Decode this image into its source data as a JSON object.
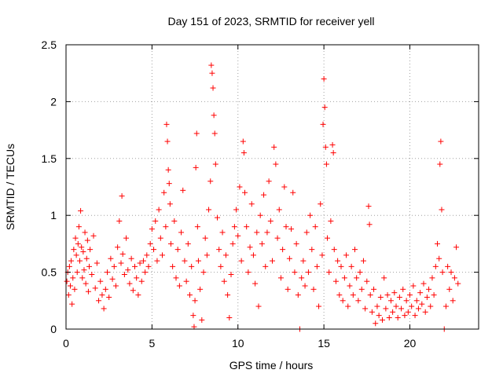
{
  "chart_data": {
    "type": "scatter",
    "title": "Day 151 of 2023, SRMTID for receiver yell",
    "xlabel": "GPS time / hours",
    "ylabel": "SRMTID / TECUs",
    "xlim": [
      0,
      24
    ],
    "ylim": [
      0,
      2.5
    ],
    "x_ticks": [
      0,
      5,
      10,
      15,
      20
    ],
    "x_tick_labels": [
      "0",
      "5",
      "10",
      "15",
      "20"
    ],
    "y_ticks": [
      0,
      0.5,
      1,
      1.5,
      2,
      2.5
    ],
    "y_tick_labels": [
      "0",
      "0.5",
      "1",
      "1.5",
      "2",
      "2.5"
    ],
    "grid": true,
    "marker": "plus",
    "color": "#ff0000",
    "series": [
      {
        "name": "SRMTID",
        "points": [
          [
            0.05,
            0.42
          ],
          [
            0.1,
            0.5
          ],
          [
            0.15,
            0.3
          ],
          [
            0.2,
            0.55
          ],
          [
            0.25,
            0.38
          ],
          [
            0.3,
            0.6
          ],
          [
            0.35,
            0.22
          ],
          [
            0.4,
            0.45
          ],
          [
            0.45,
            0.7
          ],
          [
            0.5,
            0.35
          ],
          [
            0.55,
            0.8
          ],
          [
            0.6,
            0.65
          ],
          [
            0.65,
            0.5
          ],
          [
            0.7,
            0.75
          ],
          [
            0.75,
            0.9
          ],
          [
            0.8,
            0.6
          ],
          [
            0.85,
            1.04
          ],
          [
            0.9,
            0.72
          ],
          [
            0.95,
            0.45
          ],
          [
            1.0,
            0.68
          ],
          [
            1.05,
            0.52
          ],
          [
            1.1,
            0.85
          ],
          [
            1.15,
            0.4
          ],
          [
            1.2,
            0.62
          ],
          [
            1.25,
            0.78
          ],
          [
            1.3,
            0.33
          ],
          [
            1.35,
            0.55
          ],
          [
            1.4,
            0.7
          ],
          [
            1.5,
            0.48
          ],
          [
            1.6,
            0.82
          ],
          [
            1.7,
            0.36
          ],
          [
            1.8,
            0.58
          ],
          [
            1.9,
            0.25
          ],
          [
            2.0,
            0.42
          ],
          [
            2.1,
            0.3
          ],
          [
            2.2,
            0.18
          ],
          [
            2.3,
            0.35
          ],
          [
            2.4,
            0.5
          ],
          [
            2.5,
            0.28
          ],
          [
            2.6,
            0.62
          ],
          [
            2.7,
            0.44
          ],
          [
            2.8,
            0.55
          ],
          [
            2.9,
            0.38
          ],
          [
            3.0,
            0.72
          ],
          [
            3.1,
            0.95
          ],
          [
            3.2,
            0.58
          ],
          [
            3.25,
            1.17
          ],
          [
            3.3,
            0.66
          ],
          [
            3.4,
            0.48
          ],
          [
            3.5,
            0.8
          ],
          [
            3.6,
            0.52
          ],
          [
            3.7,
            0.4
          ],
          [
            3.8,
            0.62
          ],
          [
            3.9,
            0.34
          ],
          [
            4.0,
            0.55
          ],
          [
            4.1,
            0.45
          ],
          [
            4.2,
            0.3
          ],
          [
            4.3,
            0.58
          ],
          [
            4.4,
            0.42
          ],
          [
            4.5,
            0.6
          ],
          [
            4.6,
            0.5
          ],
          [
            4.7,
            0.65
          ],
          [
            4.8,
            0.55
          ],
          [
            4.9,
            0.75
          ],
          [
            5.0,
            0.88
          ],
          [
            5.1,
            0.7
          ],
          [
            5.2,
            0.95
          ],
          [
            5.3,
            0.6
          ],
          [
            5.4,
            1.05
          ],
          [
            5.5,
            0.8
          ],
          [
            5.6,
            0.65
          ],
          [
            5.7,
            1.2
          ],
          [
            5.8,
            0.9
          ],
          [
            5.85,
            1.8
          ],
          [
            5.9,
            1.65
          ],
          [
            5.95,
            1.4
          ],
          [
            6.0,
            1.28
          ],
          [
            6.05,
            1.1
          ],
          [
            6.1,
            0.75
          ],
          [
            6.2,
            0.55
          ],
          [
            6.3,
            0.95
          ],
          [
            6.4,
            0.45
          ],
          [
            6.5,
            0.7
          ],
          [
            6.6,
            0.38
          ],
          [
            6.7,
            0.85
          ],
          [
            6.8,
            1.22
          ],
          [
            6.9,
            0.6
          ],
          [
            7.0,
            0.42
          ],
          [
            7.1,
            0.75
          ],
          [
            7.2,
            0.3
          ],
          [
            7.3,
            0.55
          ],
          [
            7.4,
            0.12
          ],
          [
            7.45,
            0.02
          ],
          [
            7.5,
            0.25
          ],
          [
            7.55,
            1.42
          ],
          [
            7.6,
            1.72
          ],
          [
            7.65,
            0.9
          ],
          [
            7.7,
            0.6
          ],
          [
            7.8,
            0.35
          ],
          [
            7.9,
            0.08
          ],
          [
            8.0,
            0.5
          ],
          [
            8.1,
            0.8
          ],
          [
            8.2,
            0.65
          ],
          [
            8.3,
            1.05
          ],
          [
            8.4,
            1.3
          ],
          [
            8.45,
            2.32
          ],
          [
            8.5,
            2.25
          ],
          [
            8.55,
            2.12
          ],
          [
            8.6,
            1.88
          ],
          [
            8.65,
            1.72
          ],
          [
            8.7,
            1.45
          ],
          [
            8.8,
            0.98
          ],
          [
            8.9,
            0.7
          ],
          [
            9.0,
            0.55
          ],
          [
            9.1,
            0.85
          ],
          [
            9.2,
            0.42
          ],
          [
            9.3,
            0.65
          ],
          [
            9.4,
            0.3
          ],
          [
            9.5,
            0.1
          ],
          [
            9.6,
            0.48
          ],
          [
            9.7,
            0.75
          ],
          [
            9.8,
            0.9
          ],
          [
            9.9,
            1.05
          ],
          [
            10.0,
            0.82
          ],
          [
            10.1,
            1.25
          ],
          [
            10.2,
            0.6
          ],
          [
            10.3,
            1.65
          ],
          [
            10.35,
            1.55
          ],
          [
            10.4,
            1.2
          ],
          [
            10.5,
            0.9
          ],
          [
            10.6,
            0.5
          ],
          [
            10.7,
            0.72
          ],
          [
            10.8,
            1.1
          ],
          [
            10.9,
            0.65
          ],
          [
            11.0,
            0.4
          ],
          [
            11.1,
            0.85
          ],
          [
            11.2,
            0.2
          ],
          [
            11.3,
            1.0
          ],
          [
            11.4,
            0.75
          ],
          [
            11.5,
            1.18
          ],
          [
            11.6,
            0.55
          ],
          [
            11.7,
            0.85
          ],
          [
            11.8,
            1.3
          ],
          [
            11.9,
            0.95
          ],
          [
            12.0,
            0.6
          ],
          [
            12.1,
            1.6
          ],
          [
            12.2,
            1.45
          ],
          [
            12.3,
            0.8
          ],
          [
            12.4,
            1.05
          ],
          [
            12.5,
            0.45
          ],
          [
            12.6,
            0.7
          ],
          [
            12.7,
            1.25
          ],
          [
            12.8,
            0.9
          ],
          [
            12.9,
            0.35
          ],
          [
            13.0,
            0.62
          ],
          [
            13.1,
            0.88
          ],
          [
            13.2,
            1.2
          ],
          [
            13.3,
            0.5
          ],
          [
            13.4,
            0.75
          ],
          [
            13.5,
            0.3
          ],
          [
            13.6,
            0.0
          ],
          [
            13.7,
            0.45
          ],
          [
            13.8,
            0.6
          ],
          [
            13.9,
            0.38
          ],
          [
            14.0,
            0.85
          ],
          [
            14.1,
            0.5
          ],
          [
            14.2,
            1.0
          ],
          [
            14.3,
            0.7
          ],
          [
            14.4,
            0.35
          ],
          [
            14.5,
            0.9
          ],
          [
            14.6,
            0.55
          ],
          [
            14.7,
            0.2
          ],
          [
            14.8,
            1.1
          ],
          [
            14.9,
            0.65
          ],
          [
            14.95,
            1.8
          ],
          [
            15.0,
            2.2
          ],
          [
            15.05,
            1.95
          ],
          [
            15.1,
            1.6
          ],
          [
            15.15,
            1.45
          ],
          [
            15.2,
            0.8
          ],
          [
            15.3,
            0.5
          ],
          [
            15.4,
            0.95
          ],
          [
            15.5,
            1.62
          ],
          [
            15.55,
            1.55
          ],
          [
            15.6,
            0.7
          ],
          [
            15.7,
            0.42
          ],
          [
            15.8,
            0.6
          ],
          [
            15.9,
            0.3
          ],
          [
            16.0,
            0.55
          ],
          [
            16.1,
            0.25
          ],
          [
            16.2,
            0.45
          ],
          [
            16.3,
            0.65
          ],
          [
            16.4,
            0.2
          ],
          [
            16.5,
            0.38
          ],
          [
            16.6,
            0.55
          ],
          [
            16.7,
            0.3
          ],
          [
            16.8,
            0.7
          ],
          [
            16.9,
            0.45
          ],
          [
            17.0,
            0.25
          ],
          [
            17.1,
            0.5
          ],
          [
            17.2,
            0.35
          ],
          [
            17.3,
            0.6
          ],
          [
            17.4,
            0.18
          ],
          [
            17.5,
            0.42
          ],
          [
            17.6,
            1.08
          ],
          [
            17.65,
            0.92
          ],
          [
            17.7,
            0.3
          ],
          [
            17.8,
            0.15
          ],
          [
            17.9,
            0.35
          ],
          [
            18.0,
            0.05
          ],
          [
            18.1,
            0.2
          ],
          [
            18.2,
            0.12
          ],
          [
            18.3,
            0.28
          ],
          [
            18.4,
            0.08
          ],
          [
            18.5,
            0.45
          ],
          [
            18.6,
            0.18
          ],
          [
            18.7,
            0.3
          ],
          [
            18.8,
            0.1
          ],
          [
            18.9,
            0.25
          ],
          [
            19.0,
            0.15
          ],
          [
            19.1,
            0.32
          ],
          [
            19.2,
            0.2
          ],
          [
            19.3,
            0.1
          ],
          [
            19.4,
            0.28
          ],
          [
            19.5,
            0.18
          ],
          [
            19.6,
            0.35
          ],
          [
            19.7,
            0.12
          ],
          [
            19.8,
            0.25
          ],
          [
            19.9,
            0.15
          ],
          [
            20.0,
            0.3
          ],
          [
            20.1,
            0.2
          ],
          [
            20.2,
            0.38
          ],
          [
            20.3,
            0.12
          ],
          [
            20.4,
            0.25
          ],
          [
            20.5,
            0.18
          ],
          [
            20.6,
            0.32
          ],
          [
            20.7,
            0.22
          ],
          [
            20.8,
            0.4
          ],
          [
            20.9,
            0.15
          ],
          [
            21.0,
            0.28
          ],
          [
            21.1,
            0.35
          ],
          [
            21.2,
            0.2
          ],
          [
            21.3,
            0.45
          ],
          [
            21.4,
            0.3
          ],
          [
            21.5,
            0.55
          ],
          [
            21.6,
            0.75
          ],
          [
            21.7,
            0.62
          ],
          [
            21.75,
            1.45
          ],
          [
            21.8,
            1.65
          ],
          [
            21.85,
            1.05
          ],
          [
            21.9,
            0.5
          ],
          [
            22.0,
            0.0
          ],
          [
            22.1,
            0.2
          ],
          [
            22.2,
            0.55
          ],
          [
            22.3,
            0.35
          ],
          [
            22.4,
            0.5
          ],
          [
            22.5,
            0.25
          ],
          [
            22.6,
            0.45
          ],
          [
            22.7,
            0.72
          ],
          [
            22.8,
            0.4
          ]
        ]
      }
    ]
  }
}
